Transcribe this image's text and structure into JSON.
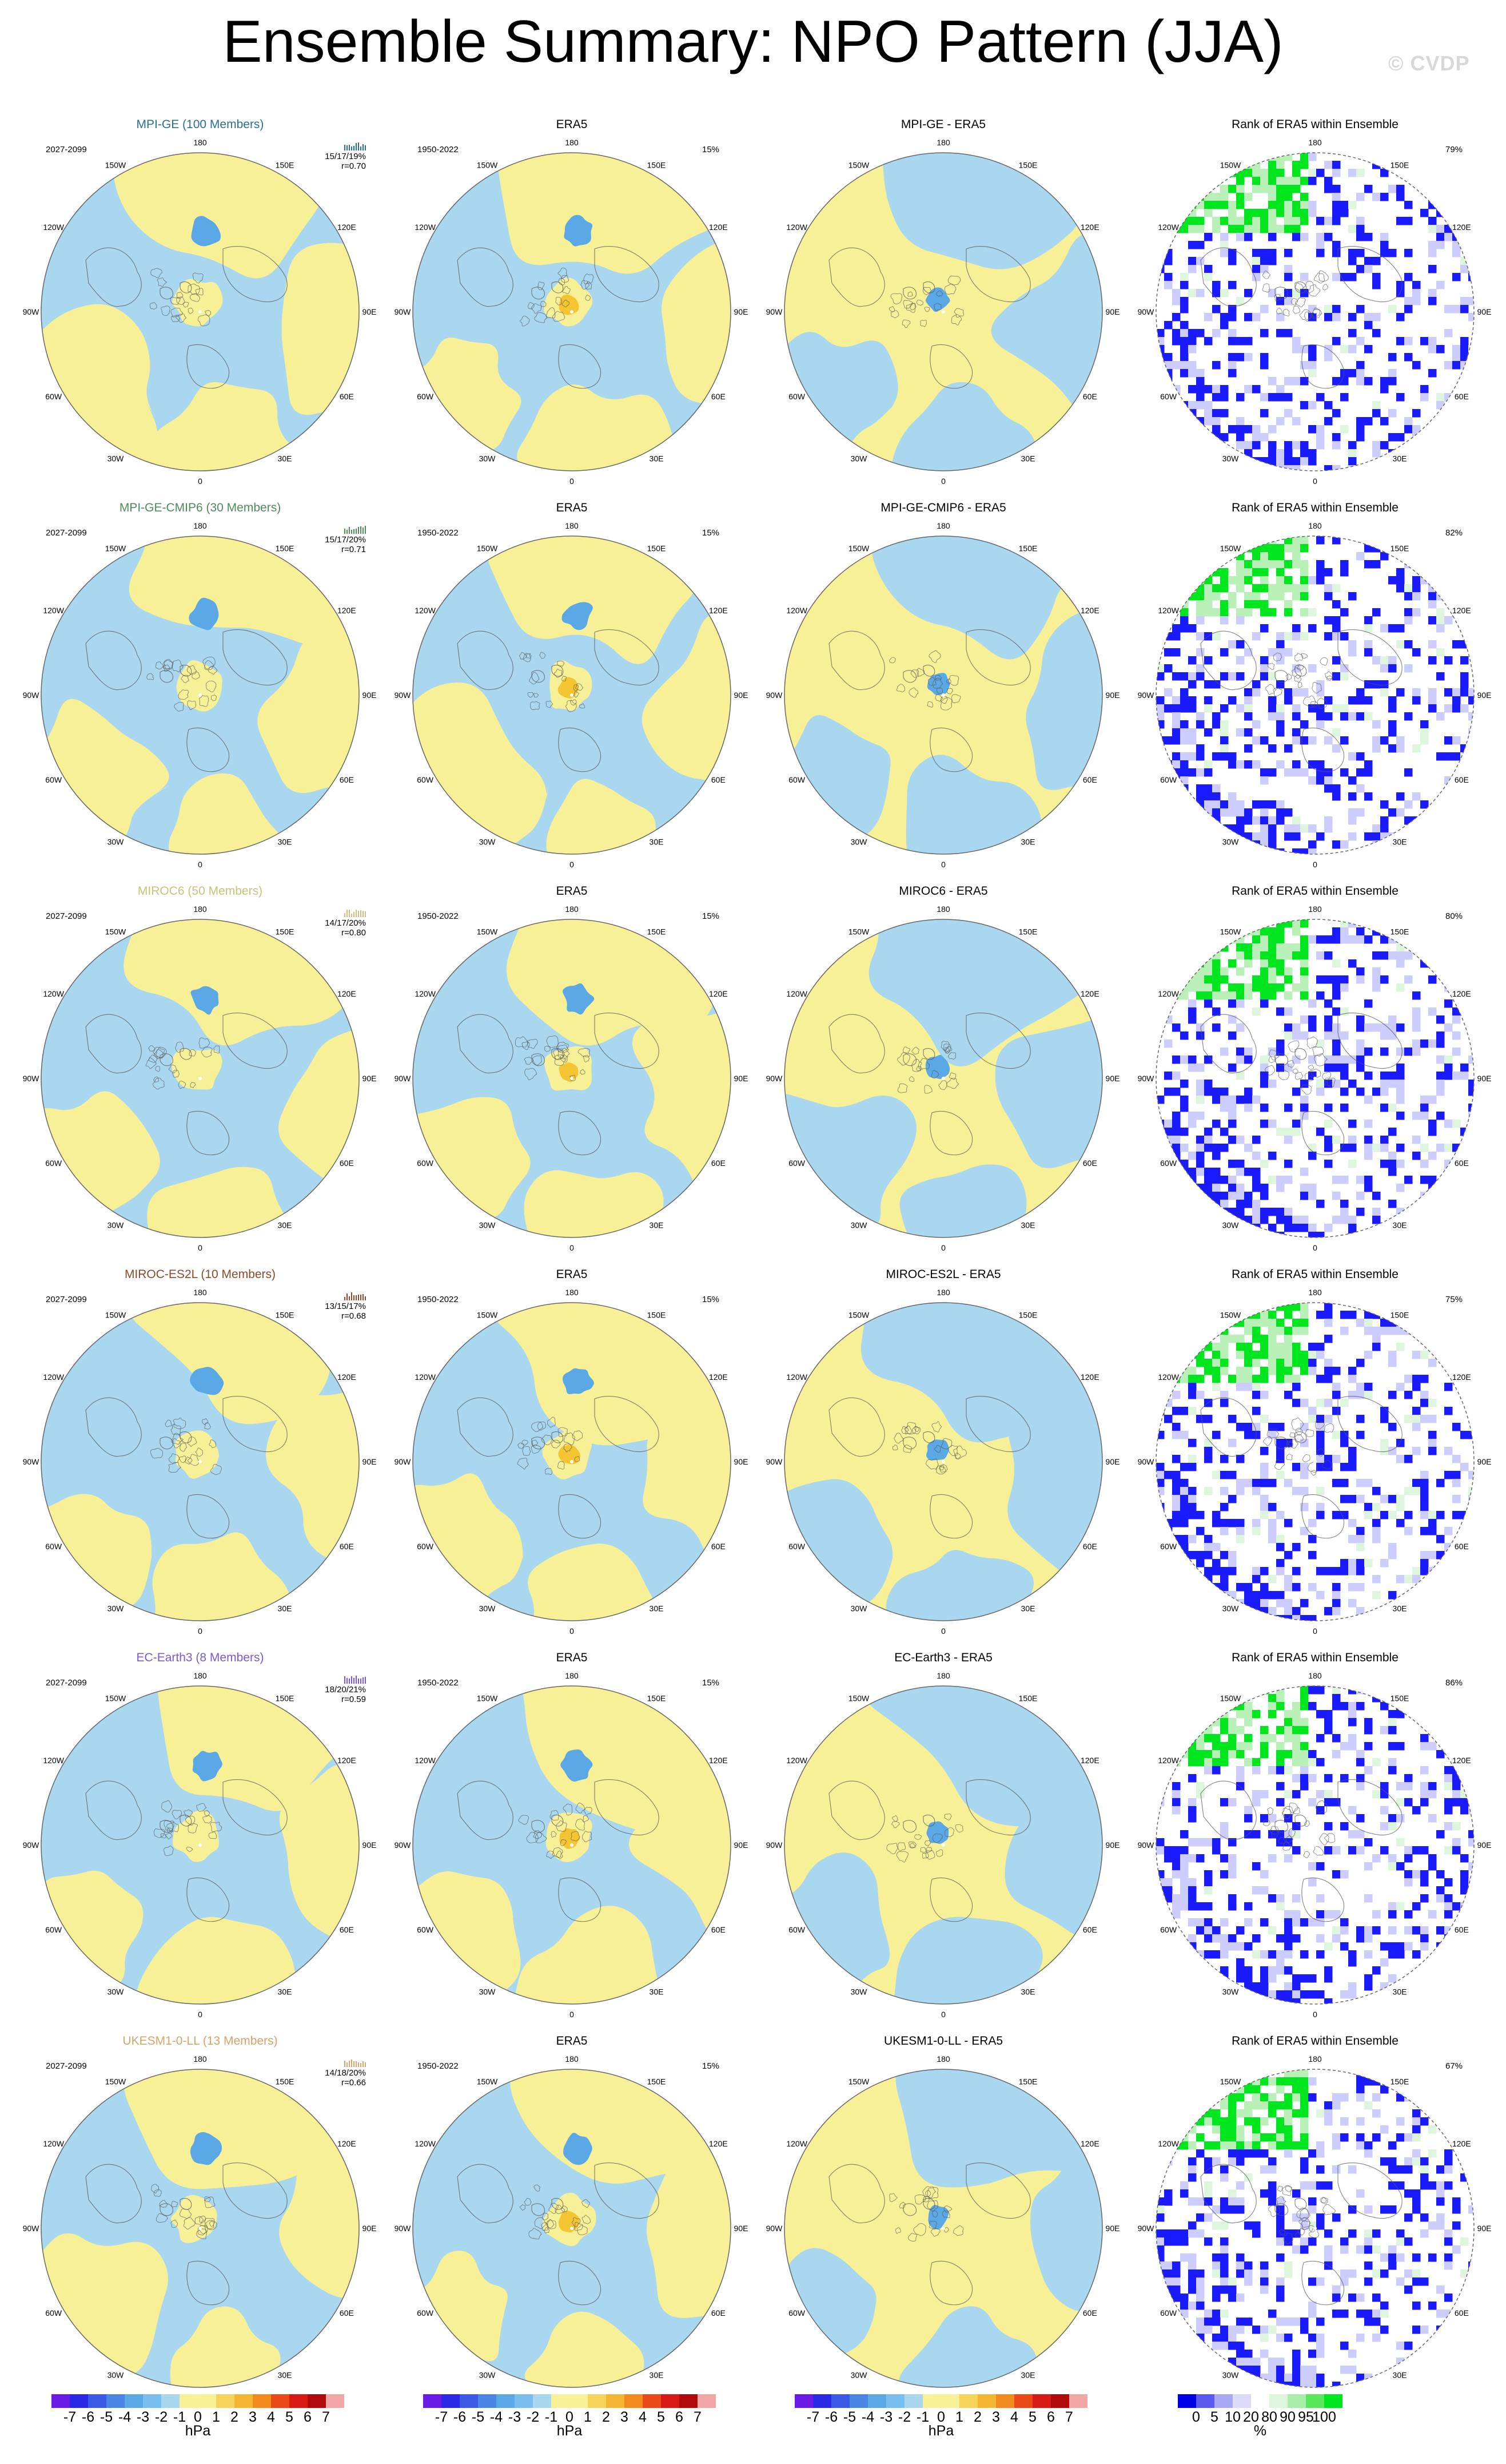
{
  "figure": {
    "title": "Ensemble Summary: NPO Pattern (JJA)",
    "watermark": "© CVDP"
  },
  "colors": {
    "ocean_blue": "#a9d7ef",
    "land_yellow": "#f8f096",
    "low_blue": "#5aa9e6",
    "high_orange": "#f5c431",
    "rank_low": "#1a1aff",
    "rank_mid": "#ccccff",
    "rank_high": "#00e61e"
  },
  "map_labels": {
    "lon_180": "180",
    "lon_150w": "150W",
    "lon_150e": "150E",
    "lon_120w": "120W",
    "lon_120e": "120E",
    "lon_90w": "90W",
    "lon_90e": "90E",
    "lon_60w": "60W",
    "lon_60e": "60E",
    "lon_30w": "30W",
    "lon_30e": "30E",
    "lon_0": "0"
  },
  "columns": {
    "obs_title": "ERA5",
    "rank_title": "Rank of ERA5 within Ensemble",
    "obs_period": "1950-2022",
    "obs_pct": "15%",
    "model_period": "2027-2099"
  },
  "rows": [
    {
      "model_title": "MPI-GE (100 Members)",
      "title_color": "#2a6f8f",
      "stats": "15/17/19%",
      "r": "r=0.70",
      "diff_title": "MPI-GE - ERA5",
      "rank_pct": "79%",
      "variant": 0
    },
    {
      "model_title": "MPI-GE-CMIP6 (30 Members)",
      "title_color": "#4f8a5b",
      "stats": "15/17/20%",
      "r": "r=0.71",
      "diff_title": "MPI-GE-CMIP6 - ERA5",
      "rank_pct": "82%",
      "variant": 1
    },
    {
      "model_title": "MIROC6 (50 Members)",
      "title_color": "#c8c27a",
      "stats": "14/17/20%",
      "r": "r=0.80",
      "diff_title": "MIROC6 - ERA5",
      "rank_pct": "80%",
      "variant": 2
    },
    {
      "model_title": "MIROC-ES2L (10 Members)",
      "title_color": "#8a4a2a",
      "stats": "13/15/17%",
      "r": "r=0.68",
      "diff_title": "MIROC-ES2L - ERA5",
      "rank_pct": "75%",
      "variant": 3
    },
    {
      "model_title": "EC-Earth3 (8 Members)",
      "title_color": "#7a5ad0",
      "stats": "18/20/21%",
      "r": "r=0.59",
      "diff_title": "EC-Earth3 - ERA5",
      "rank_pct": "86%",
      "variant": 4
    },
    {
      "model_title": "UKESM1-0-LL (13 Members)",
      "title_color": "#d6a36a",
      "stats": "14/18/20%",
      "r": "r=0.66",
      "diff_title": "UKESM1-0-LL - ERA5",
      "rank_pct": "67%",
      "variant": 5
    }
  ],
  "colorbar_hpa": {
    "unit": "hPa",
    "ticks": [
      "-7",
      "-6",
      "-5",
      "-4",
      "-3",
      "-2",
      "-1",
      "0",
      "1",
      "2",
      "3",
      "4",
      "5",
      "6",
      "7"
    ],
    "colors": [
      "#6a1be6",
      "#2a2ae6",
      "#3a5ae6",
      "#4a86e6",
      "#5aa9e6",
      "#79bff0",
      "#a9d7ef",
      "#f8f096",
      "#f8f096",
      "#f6d35a",
      "#f5b431",
      "#f28a1e",
      "#ea4a18",
      "#d81a14",
      "#b00a0a",
      "#f2a7a7"
    ]
  },
  "colorbar_rank": {
    "unit": "%",
    "ticks": [
      "0",
      "5",
      "10",
      "20",
      "80",
      "90",
      "95",
      "100"
    ],
    "colors": [
      "#0000e6",
      "#5a5af0",
      "#a8a8f5",
      "#dcdcfa",
      "#ffffff",
      "#dcf5dc",
      "#a8eea8",
      "#5ae65a",
      "#00e61e"
    ]
  }
}
